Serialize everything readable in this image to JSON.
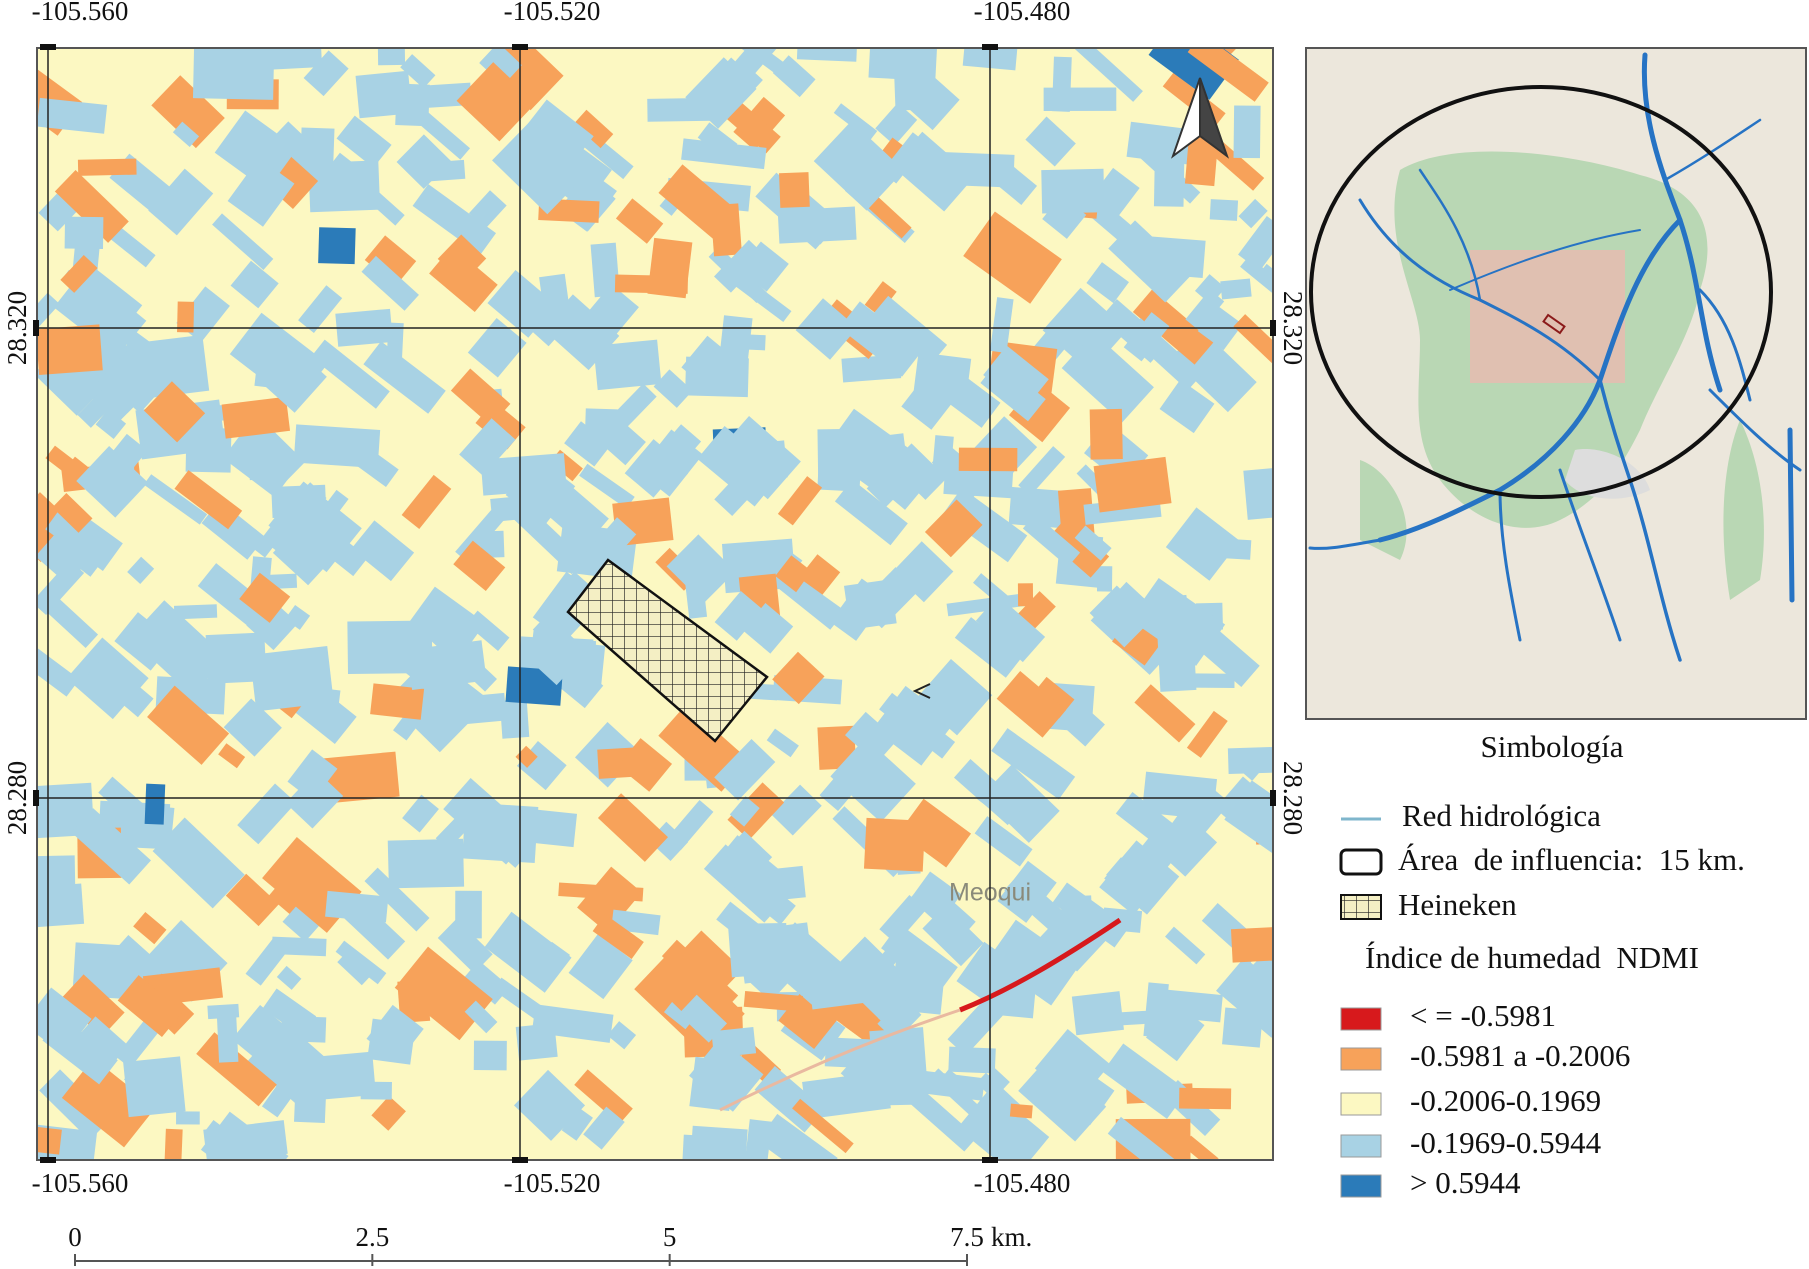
{
  "map": {
    "grid": {
      "top_labels": [
        "-105.560",
        "-105.520",
        "-105.480"
      ],
      "bottom_labels": [
        "-105.560",
        "-105.520",
        "-105.480"
      ],
      "left_labels": [
        "28.320",
        "28.280"
      ],
      "right_labels": [
        "28.320",
        "28.280"
      ]
    },
    "place_label": "Meoqui",
    "scale_bar": {
      "ticks": [
        0,
        2.5,
        5,
        7.5
      ],
      "unit": "km."
    },
    "legend": {
      "title": "Simbología",
      "items": [
        {
          "label": "Red hidrológica"
        },
        {
          "label": "Área  de influencia:  15 km."
        },
        {
          "label": "Heineken"
        }
      ],
      "ndmi_title": "Índice de humedad  NDMI",
      "classes": [
        {
          "label": "< = -0.5981",
          "color": "#d7191c"
        },
        {
          "label": "-0.5981  a  -0.2006",
          "color": "#f7a25a"
        },
        {
          "label": "-0.2006-0.1969",
          "color": "#fcf8c2"
        },
        {
          "label": "-0.1969-0.5944",
          "color": "#a8d2e4"
        },
        {
          "label": "> 0.5944",
          "color": "#2b7bb9"
        }
      ]
    }
  }
}
